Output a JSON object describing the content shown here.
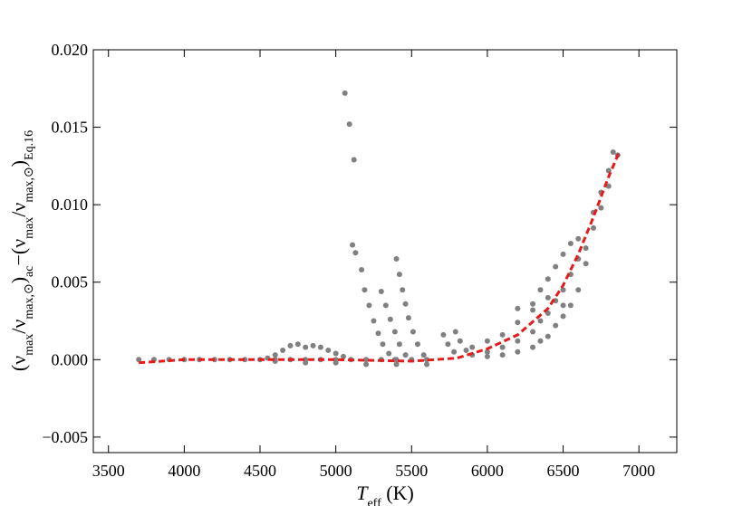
{
  "chart_data": {
    "type": "scatter",
    "xlabel": [
      [
        "T",
        "eff"
      ],
      [
        " (K)"
      ]
    ],
    "ylabel": [
      [
        "(ν",
        "max"
      ],
      [
        "/ν",
        "max,⊙"
      ],
      [
        ")",
        "ac"
      ],
      [
        "−(ν",
        "max"
      ],
      [
        "/ν",
        "max,⊙"
      ],
      [
        ")",
        "Eq.16"
      ]
    ],
    "xlim": [
      3400,
      7250
    ],
    "ylim": [
      -0.006,
      0.02
    ],
    "xticks": [
      3500,
      4000,
      4500,
      5000,
      5500,
      6000,
      6500,
      7000
    ],
    "yticks": [
      {
        "value": -0.005,
        "label": "−0.005"
      },
      {
        "value": 0,
        "label": "0.000"
      },
      {
        "value": 0.005,
        "label": "0.005"
      },
      {
        "value": 0.01,
        "label": "0.010"
      },
      {
        "value": 0.015,
        "label": "0.015"
      },
      {
        "value": 0.02,
        "label": "0.020"
      }
    ],
    "grid": false,
    "series": [
      {
        "style": "points",
        "color": "#808080",
        "x": [
          3700,
          3800,
          3900,
          4000,
          4100,
          4200,
          4300,
          4400,
          4500,
          4600,
          4700,
          4800,
          4900,
          5000,
          5100,
          5200,
          5300,
          5400,
          5500,
          5600,
          4600,
          4800,
          5000,
          5200,
          5400,
          5600,
          4550,
          4600,
          4650,
          4700,
          4750,
          4800,
          4850,
          4900,
          4950,
          5000,
          5050,
          5060,
          5090,
          5120,
          5110,
          5130,
          5170,
          5190,
          5220,
          5250,
          5280,
          5310,
          5350,
          5390,
          5300,
          5330,
          5360,
          5390,
          5420,
          5460,
          5400,
          5420,
          5440,
          5460,
          5480,
          5510,
          5540,
          5580,
          5710,
          5740,
          5780,
          5790,
          5820,
          5860,
          5900,
          5900,
          6000,
          6000,
          6000,
          6100,
          6100,
          6100,
          6200,
          6200,
          6200,
          6200,
          6300,
          6300,
          6300,
          6300,
          6350,
          6350,
          6350,
          6400,
          6400,
          6400,
          6400,
          6450,
          6450,
          6450,
          6500,
          6500,
          6500,
          6500,
          6550,
          6550,
          6550,
          6600,
          6600,
          6600,
          6650,
          6650,
          6700,
          6700,
          6750,
          6750,
          6800,
          6800,
          6830,
          6860
        ],
        "values": [
          0,
          0,
          0,
          0,
          0,
          0,
          0,
          0,
          0,
          0,
          0,
          0,
          0,
          0,
          0,
          0,
          0,
          0,
          0,
          0,
          -0.0001,
          -0.0002,
          -0.0002,
          -0.0003,
          -0.0003,
          -0.0003,
          0.0001,
          0.0003,
          0.0006,
          0.0009,
          0.001,
          0.0008,
          0.0009,
          0.0008,
          0.0006,
          0.0004,
          0.0002,
          0.0172,
          0.0152,
          0.0129,
          0.0074,
          0.0069,
          0.0058,
          0.0045,
          0.0035,
          0.0025,
          0.0017,
          0.001,
          0.0004,
          0,
          0.0044,
          0.0035,
          0.0026,
          0.0018,
          0.001,
          0.0003,
          0.0065,
          0.0055,
          0.0045,
          0.0036,
          0.0027,
          0.0018,
          0.001,
          0.0003,
          0.0016,
          0.001,
          0.0005,
          0.0018,
          0.0012,
          0.0006,
          0.0003,
          0.0008,
          0.0005,
          0.0012,
          0.0002,
          0.0008,
          0.0016,
          0.0003,
          0.0012,
          0.0024,
          0.0005,
          0.0033,
          0.0018,
          0.0032,
          0.0008,
          0.0036,
          0.0025,
          0.0045,
          0.0012,
          0.003,
          0.0052,
          0.0015,
          0.004,
          0.0038,
          0.006,
          0.0022,
          0.0045,
          0.0068,
          0.0028,
          0.0035,
          0.0055,
          0.0075,
          0.0035,
          0.0065,
          0.0078,
          0.0045,
          0.0072,
          0.0062,
          0.0095,
          0.0085,
          0.0108,
          0.0098,
          0.0122,
          0.0112,
          0.0134,
          0.0132
        ]
      },
      {
        "style": "dashed-line",
        "color": "#e8191a",
        "x": [
          3700,
          4000,
          4500,
          5000,
          5500,
          5800,
          6000,
          6200,
          6400,
          6500,
          6600,
          6700,
          6800,
          6870
        ],
        "values": [
          -0.0002,
          0,
          0,
          0,
          -0.0001,
          0.0001,
          0.0007,
          0.0016,
          0.0033,
          0.0048,
          0.0068,
          0.0092,
          0.0118,
          0.0134
        ]
      }
    ]
  }
}
